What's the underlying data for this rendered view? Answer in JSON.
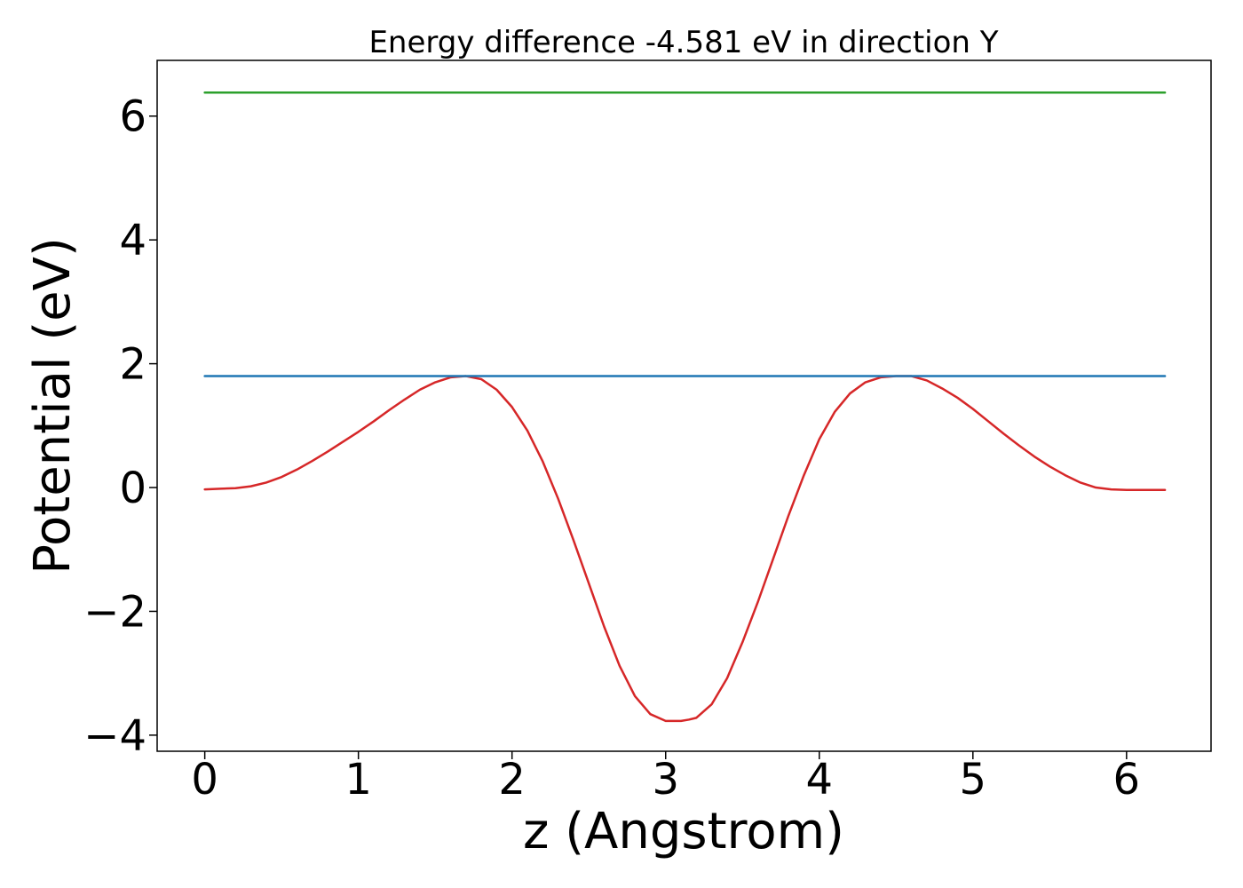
{
  "chart_data": {
    "type": "line",
    "title": "Energy difference -4.581 eV in direction Y",
    "xlabel": "z (Angstrom)",
    "ylabel": "Potential (eV)",
    "xlim": [
      -0.31,
      6.55
    ],
    "ylim": [
      -4.26,
      6.9
    ],
    "xticks": [
      0,
      1,
      2,
      3,
      4,
      5,
      6
    ],
    "xtick_labels": [
      "0",
      "1",
      "2",
      "3",
      "4",
      "5",
      "6"
    ],
    "yticks": [
      -4,
      -2,
      0,
      2,
      4,
      6
    ],
    "ytick_labels": [
      "−4",
      "−2",
      "0",
      "2",
      "4",
      "6"
    ],
    "grid": false,
    "legend": false,
    "series": [
      {
        "color": "#d62728",
        "x": [
          0,
          0.1,
          0.2,
          0.3,
          0.4,
          0.5,
          0.6,
          0.7,
          0.8,
          0.9,
          1.0,
          1.1,
          1.2,
          1.3,
          1.4,
          1.5,
          1.6,
          1.7,
          1.8,
          1.9,
          2.0,
          2.1,
          2.2,
          2.3,
          2.4,
          2.5,
          2.6,
          2.7,
          2.8,
          2.9,
          3.0,
          3.1,
          3.15,
          3.2,
          3.3,
          3.4,
          3.5,
          3.6,
          3.7,
          3.8,
          3.9,
          4.0,
          4.1,
          4.2,
          4.3,
          4.4,
          4.5,
          4.6,
          4.7,
          4.8,
          4.9,
          5.0,
          5.1,
          5.2,
          5.3,
          5.4,
          5.5,
          5.6,
          5.7,
          5.8,
          5.9,
          6.0,
          6.1,
          6.2,
          6.25
        ],
        "y": [
          -0.03,
          -0.02,
          -0.01,
          0.02,
          0.08,
          0.17,
          0.29,
          0.43,
          0.58,
          0.74,
          0.9,
          1.07,
          1.25,
          1.42,
          1.58,
          1.7,
          1.78,
          1.8,
          1.75,
          1.58,
          1.3,
          0.92,
          0.42,
          -0.18,
          -0.85,
          -1.55,
          -2.25,
          -2.88,
          -3.37,
          -3.66,
          -3.77,
          -3.77,
          -3.75,
          -3.72,
          -3.5,
          -3.08,
          -2.5,
          -1.85,
          -1.15,
          -0.45,
          0.2,
          0.78,
          1.22,
          1.52,
          1.7,
          1.78,
          1.8,
          1.8,
          1.73,
          1.6,
          1.45,
          1.27,
          1.07,
          0.87,
          0.68,
          0.5,
          0.34,
          0.2,
          0.08,
          0.0,
          -0.03,
          -0.04,
          -0.04,
          -0.04,
          -0.04
        ]
      },
      {
        "color": "#1f77b4",
        "x": [
          0,
          6.25
        ],
        "y": [
          1.8,
          1.8
        ]
      },
      {
        "color": "#2ca02c",
        "x": [
          0,
          6.25
        ],
        "y": [
          6.38,
          6.38
        ]
      }
    ]
  }
}
